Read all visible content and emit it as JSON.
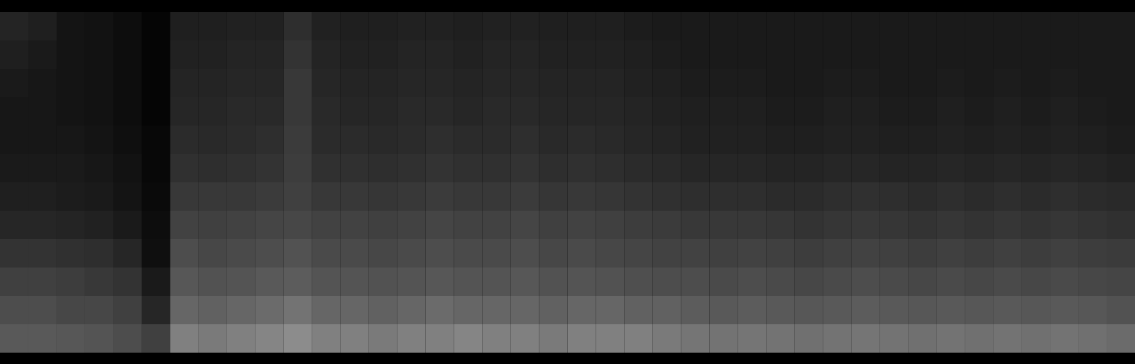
{
  "chart_data": {
    "type": "heatmap",
    "tick_labels": false,
    "color": "#ffffff",
    "zlim": [
      0,
      1
    ],
    "x": [
      0,
      1,
      2,
      3,
      4,
      5,
      6,
      7,
      8,
      9,
      10,
      11,
      12,
      13,
      14,
      15,
      16,
      17,
      18,
      19,
      20,
      21,
      22,
      23,
      24,
      25,
      26,
      27,
      28,
      29,
      30,
      31,
      32,
      33,
      34,
      35,
      36,
      37,
      38,
      39
    ],
    "y": [
      0,
      1,
      2,
      3,
      4,
      5,
      6,
      7,
      8,
      9,
      10,
      11
    ],
    "values": [
      [
        0.35,
        0.35,
        0.34,
        0.33,
        0.3,
        0.25,
        0.5,
        0.48,
        0.5,
        0.52,
        0.55,
        0.5,
        0.5,
        0.48,
        0.5,
        0.5,
        0.52,
        0.5,
        0.5,
        0.48,
        0.5,
        0.5,
        0.5,
        0.48,
        0.46,
        0.45,
        0.46,
        0.45,
        0.44,
        0.45,
        0.46,
        0.45,
        0.44,
        0.45,
        0.44,
        0.45,
        0.44,
        0.45,
        0.44,
        0.42
      ],
      [
        0.3,
        0.3,
        0.28,
        0.28,
        0.25,
        0.15,
        0.4,
        0.38,
        0.4,
        0.42,
        0.45,
        0.4,
        0.4,
        0.38,
        0.4,
        0.42,
        0.4,
        0.4,
        0.4,
        0.38,
        0.4,
        0.4,
        0.38,
        0.38,
        0.36,
        0.35,
        0.36,
        0.35,
        0.34,
        0.35,
        0.36,
        0.35,
        0.34,
        0.35,
        0.34,
        0.35,
        0.34,
        0.35,
        0.34,
        0.32
      ],
      [
        0.25,
        0.25,
        0.24,
        0.22,
        0.2,
        0.1,
        0.34,
        0.32,
        0.33,
        0.35,
        0.36,
        0.33,
        0.33,
        0.32,
        0.33,
        0.34,
        0.33,
        0.33,
        0.34,
        0.32,
        0.33,
        0.32,
        0.31,
        0.3,
        0.3,
        0.29,
        0.3,
        0.29,
        0.28,
        0.29,
        0.3,
        0.29,
        0.28,
        0.29,
        0.28,
        0.29,
        0.28,
        0.29,
        0.28,
        0.27
      ],
      [
        0.2,
        0.2,
        0.19,
        0.18,
        0.15,
        0.06,
        0.3,
        0.28,
        0.29,
        0.3,
        0.32,
        0.29,
        0.29,
        0.28,
        0.29,
        0.3,
        0.29,
        0.29,
        0.3,
        0.28,
        0.29,
        0.28,
        0.27,
        0.26,
        0.26,
        0.25,
        0.26,
        0.25,
        0.24,
        0.25,
        0.26,
        0.25,
        0.24,
        0.25,
        0.24,
        0.25,
        0.24,
        0.25,
        0.24,
        0.23
      ],
      [
        0.15,
        0.15,
        0.14,
        0.13,
        0.1,
        0.05,
        0.26,
        0.25,
        0.26,
        0.27,
        0.28,
        0.26,
        0.26,
        0.25,
        0.26,
        0.27,
        0.26,
        0.26,
        0.27,
        0.25,
        0.26,
        0.25,
        0.24,
        0.23,
        0.22,
        0.22,
        0.22,
        0.21,
        0.2,
        0.21,
        0.22,
        0.21,
        0.2,
        0.21,
        0.2,
        0.21,
        0.2,
        0.21,
        0.2,
        0.19
      ],
      [
        0.12,
        0.12,
        0.11,
        0.1,
        0.08,
        0.04,
        0.22,
        0.22,
        0.22,
        0.23,
        0.25,
        0.22,
        0.22,
        0.21,
        0.22,
        0.23,
        0.22,
        0.22,
        0.23,
        0.21,
        0.22,
        0.21,
        0.2,
        0.19,
        0.18,
        0.18,
        0.18,
        0.17,
        0.17,
        0.18,
        0.19,
        0.18,
        0.17,
        0.18,
        0.17,
        0.18,
        0.17,
        0.18,
        0.17,
        0.16
      ],
      [
        0.1,
        0.1,
        0.1,
        0.09,
        0.07,
        0.03,
        0.19,
        0.18,
        0.19,
        0.2,
        0.24,
        0.19,
        0.19,
        0.18,
        0.19,
        0.2,
        0.19,
        0.19,
        0.2,
        0.18,
        0.19,
        0.18,
        0.17,
        0.16,
        0.15,
        0.15,
        0.15,
        0.14,
        0.14,
        0.15,
        0.15,
        0.14,
        0.14,
        0.15,
        0.14,
        0.15,
        0.14,
        0.15,
        0.14,
        0.13
      ],
      [
        0.09,
        0.09,
        0.09,
        0.08,
        0.06,
        0.03,
        0.17,
        0.16,
        0.17,
        0.18,
        0.23,
        0.17,
        0.17,
        0.16,
        0.17,
        0.18,
        0.17,
        0.17,
        0.18,
        0.16,
        0.17,
        0.16,
        0.15,
        0.14,
        0.13,
        0.13,
        0.13,
        0.12,
        0.12,
        0.13,
        0.13,
        0.12,
        0.12,
        0.13,
        0.12,
        0.13,
        0.12,
        0.13,
        0.12,
        0.11
      ],
      [
        0.09,
        0.09,
        0.08,
        0.07,
        0.05,
        0.02,
        0.15,
        0.15,
        0.16,
        0.16,
        0.22,
        0.16,
        0.15,
        0.15,
        0.16,
        0.16,
        0.15,
        0.16,
        0.16,
        0.15,
        0.15,
        0.15,
        0.14,
        0.13,
        0.12,
        0.12,
        0.12,
        0.11,
        0.11,
        0.12,
        0.12,
        0.11,
        0.11,
        0.12,
        0.11,
        0.12,
        0.11,
        0.12,
        0.11,
        0.1
      ],
      [
        0.1,
        0.09,
        0.08,
        0.07,
        0.05,
        0.02,
        0.14,
        0.14,
        0.15,
        0.15,
        0.22,
        0.15,
        0.14,
        0.14,
        0.15,
        0.15,
        0.14,
        0.15,
        0.15,
        0.14,
        0.14,
        0.14,
        0.13,
        0.12,
        0.11,
        0.11,
        0.11,
        0.1,
        0.1,
        0.11,
        0.11,
        0.1,
        0.1,
        0.11,
        0.1,
        0.11,
        0.1,
        0.11,
        0.1,
        0.1
      ],
      [
        0.12,
        0.1,
        0.08,
        0.07,
        0.05,
        0.02,
        0.13,
        0.13,
        0.14,
        0.14,
        0.2,
        0.14,
        0.13,
        0.13,
        0.14,
        0.14,
        0.13,
        0.14,
        0.14,
        0.13,
        0.13,
        0.13,
        0.12,
        0.11,
        0.1,
        0.1,
        0.1,
        0.1,
        0.1,
        0.1,
        0.1,
        0.1,
        0.1,
        0.1,
        0.1,
        0.1,
        0.1,
        0.1,
        0.1,
        0.1
      ],
      [
        0.14,
        0.12,
        0.08,
        0.07,
        0.05,
        0.02,
        0.12,
        0.12,
        0.13,
        0.13,
        0.18,
        0.13,
        0.12,
        0.12,
        0.13,
        0.13,
        0.12,
        0.13,
        0.13,
        0.12,
        0.12,
        0.12,
        0.11,
        0.1,
        0.1,
        0.1,
        0.1,
        0.1,
        0.1,
        0.1,
        0.1,
        0.1,
        0.1,
        0.1,
        0.1,
        0.1,
        0.1,
        0.1,
        0.1,
        0.1
      ]
    ]
  }
}
